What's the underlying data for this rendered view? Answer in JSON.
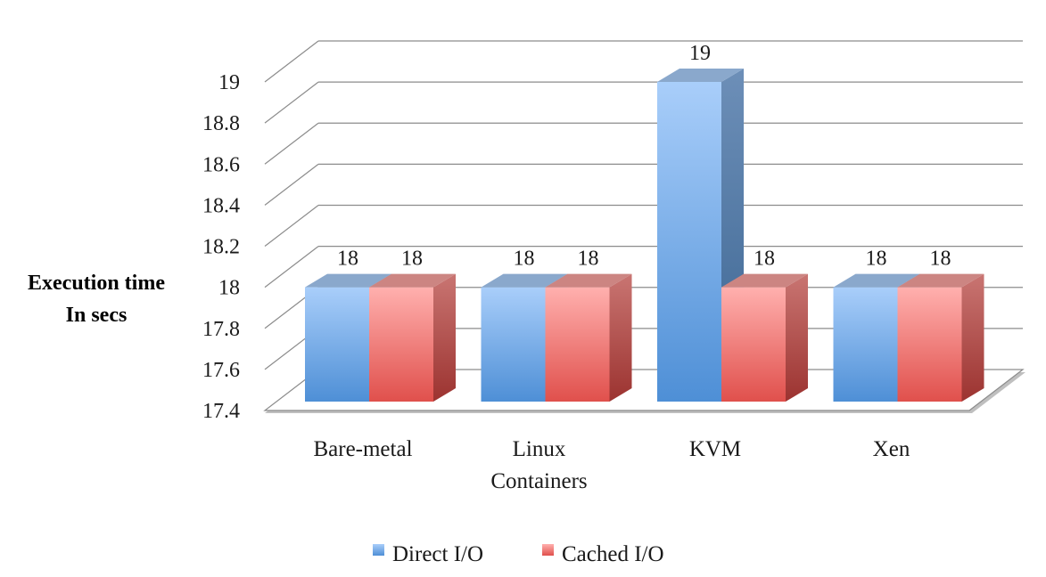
{
  "chart_data": {
    "type": "bar",
    "style": "3d-clustered-column",
    "ylabel_lines": [
      "Execution time",
      "In secs"
    ],
    "xlabel": "",
    "categories": [
      [
        "Bare-metal"
      ],
      [
        "Linux",
        "Containers"
      ],
      [
        "KVM"
      ],
      [
        "Xen"
      ]
    ],
    "series": [
      {
        "name": "Direct I/O",
        "values": [
          18,
          18,
          19,
          18
        ],
        "labels": [
          "18",
          "18",
          "19",
          "18"
        ],
        "color": "#7fb3ee"
      },
      {
        "name": "Cached I/O",
        "values": [
          18,
          18,
          18,
          18
        ],
        "labels": [
          "18",
          "18",
          "18",
          "18"
        ],
        "color": "#f08a86"
      }
    ],
    "ylim": [
      17.4,
      19
    ],
    "yticks": [
      "17.4",
      "17.6",
      "17.8",
      "18",
      "18.2",
      "18.4",
      "18.6",
      "18.8",
      "19"
    ],
    "grid": true,
    "legend_position": "bottom"
  }
}
